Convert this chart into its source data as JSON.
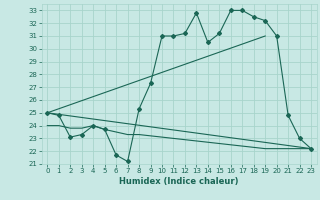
{
  "xlabel": "Humidex (Indice chaleur)",
  "bg_color": "#c8e8e4",
  "grid_color": "#a8d4cc",
  "line_color": "#1a6655",
  "xlim": [
    -0.5,
    23.5
  ],
  "ylim": [
    21,
    33.5
  ],
  "yticks": [
    21,
    22,
    23,
    24,
    25,
    26,
    27,
    28,
    29,
    30,
    31,
    32,
    33
  ],
  "xticks": [
    0,
    1,
    2,
    3,
    4,
    5,
    6,
    7,
    8,
    9,
    10,
    11,
    12,
    13,
    14,
    15,
    16,
    17,
    18,
    19,
    20,
    21,
    22,
    23
  ],
  "series1_x": [
    0,
    1,
    2,
    3,
    4,
    5,
    6,
    7,
    8,
    9,
    10,
    11,
    12,
    13,
    14,
    15,
    16,
    17,
    18,
    19,
    20,
    21,
    22,
    23
  ],
  "series1_y": [
    25.0,
    24.8,
    23.1,
    23.3,
    24.0,
    23.7,
    21.7,
    21.2,
    25.3,
    27.3,
    31.0,
    31.0,
    31.2,
    32.8,
    30.5,
    31.2,
    33.0,
    33.0,
    32.5,
    32.2,
    31.0,
    24.8,
    23.0,
    22.2
  ],
  "series2_x": [
    0,
    19
  ],
  "series2_y": [
    25.0,
    31.0
  ],
  "series3_x": [
    0,
    23
  ],
  "series3_y": [
    25.0,
    22.2
  ],
  "series4_x": [
    0,
    1,
    2,
    3,
    4,
    5,
    6,
    7,
    8,
    9,
    10,
    11,
    12,
    13,
    14,
    15,
    16,
    17,
    18,
    19,
    20,
    21,
    22,
    23
  ],
  "series4_y": [
    24.0,
    24.0,
    23.8,
    23.8,
    24.0,
    23.7,
    23.5,
    23.3,
    23.3,
    23.2,
    23.1,
    23.0,
    22.9,
    22.8,
    22.7,
    22.6,
    22.5,
    22.4,
    22.3,
    22.2,
    22.2,
    22.2,
    22.2,
    22.2
  ]
}
